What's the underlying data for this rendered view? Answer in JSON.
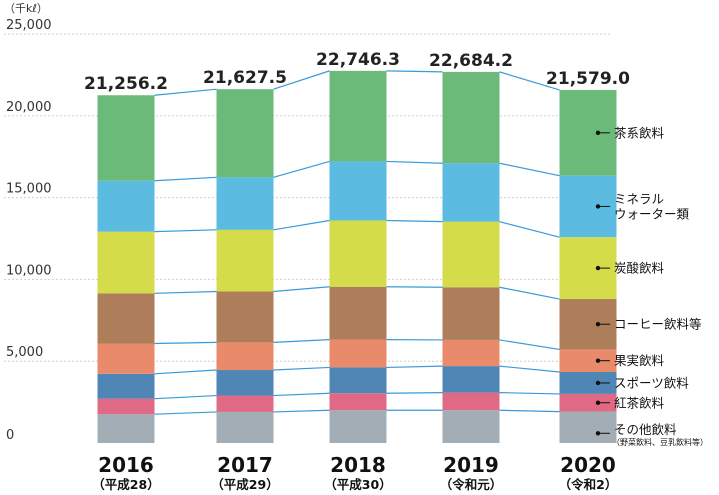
{
  "chart_data": {
    "type": "bar",
    "stacked": true,
    "unit_label": "（千kℓ）",
    "ylim": [
      0,
      25000
    ],
    "yticks": [
      {
        "value": 0,
        "label": "0"
      },
      {
        "value": 5000,
        "label": "5,000"
      },
      {
        "value": 10000,
        "label": "10,000"
      },
      {
        "value": 15000,
        "label": "15,000"
      },
      {
        "value": 20000,
        "label": "20,000"
      },
      {
        "value": 25000,
        "label": "25,000"
      }
    ],
    "grid": true,
    "categories": [
      {
        "year": "2016",
        "era": "（平成28）"
      },
      {
        "year": "2017",
        "era": "（平成29）"
      },
      {
        "year": "2018",
        "era": "（平成30）"
      },
      {
        "year": "2019",
        "era": "（令和元）"
      },
      {
        "year": "2020",
        "era": "（令和2）"
      }
    ],
    "totals": [
      {
        "value": 21256.2,
        "label": "21,256.2"
      },
      {
        "value": 21627.5,
        "label": "21,627.5"
      },
      {
        "value": 22746.3,
        "label": "22,746.3"
      },
      {
        "value": 22684.2,
        "label": "22,684.2"
      },
      {
        "value": 21579.0,
        "label": "21,579.0"
      }
    ],
    "series": [
      {
        "name": "その他飲料",
        "note": "（野菜飲料、豆乳飲料等）",
        "color": "#a3adb5",
        "values": [
          1760,
          1900,
          2000,
          2000,
          1920
        ]
      },
      {
        "name": "紅茶飲料",
        "color": "#e06a85",
        "values": [
          950,
          1000,
          1040,
          1080,
          1080
        ]
      },
      {
        "name": "スポーツ飲料",
        "color": "#4f86b6",
        "values": [
          1520,
          1560,
          1580,
          1620,
          1340
        ]
      },
      {
        "name": "果実飲料",
        "color": "#e98a6a",
        "values": [
          1850,
          1690,
          1700,
          1600,
          1380
        ]
      },
      {
        "name": "コーヒー飲料等",
        "color": "#ad7e59",
        "values": [
          3070,
          3110,
          3230,
          3220,
          3080
        ]
      },
      {
        "name": "炭酸飲料",
        "color": "#d4dc4a",
        "values": [
          3770,
          3770,
          4050,
          4010,
          3780
        ]
      },
      {
        "name": "ミネラル\nウォーター類",
        "color": "#5bbbe0",
        "values": [
          3110,
          3210,
          3610,
          3570,
          3760
        ]
      },
      {
        "name": "茶系飲料",
        "color": "#6bba7a",
        "values": [
          5226.2,
          5387.5,
          5536.3,
          5584.2,
          5239.0
        ]
      }
    ]
  }
}
